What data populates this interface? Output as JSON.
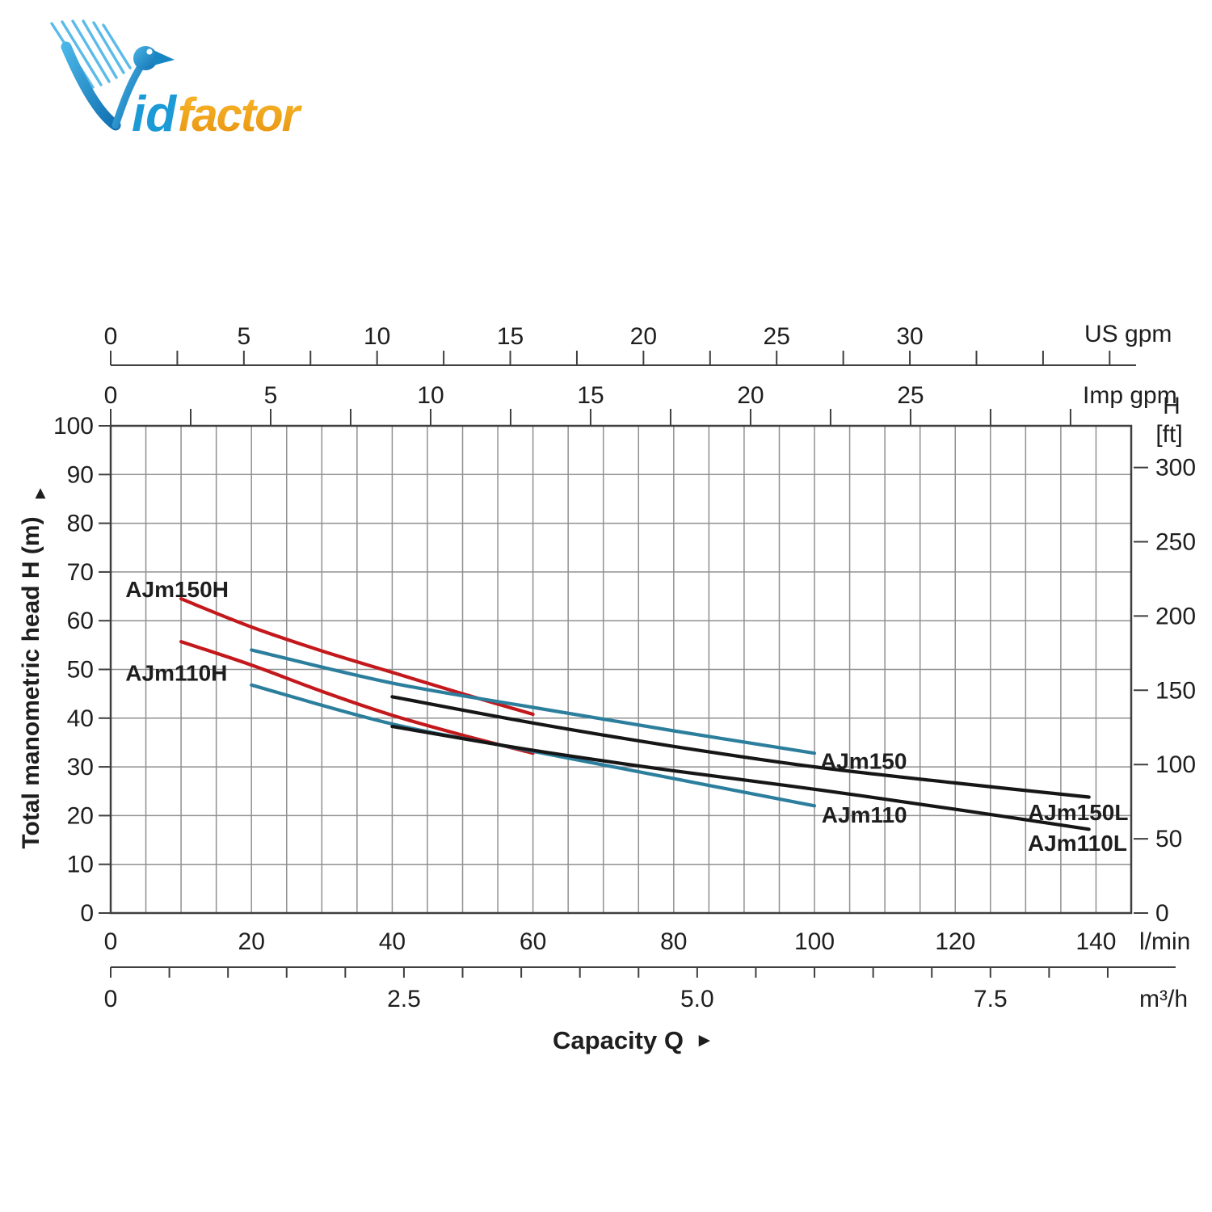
{
  "page": {
    "background": "#ffffff"
  },
  "logo": {
    "name": "VidFactor",
    "text_id": "id",
    "text_factor": "factor",
    "colors": {
      "blue": "#1b9ad6",
      "blue_dark": "#0f6fb0",
      "blue_light": "#49b4e6",
      "orange": "#f6a81c",
      "orange_dark": "#e8920e"
    }
  },
  "chart_data": {
    "type": "line",
    "title": "",
    "xlabel": "Capacity Q",
    "xlabel_arrow": "►",
    "ylabel": "Total manometric head H (m)",
    "ylabel_arrow": "▲",
    "x_range_lmin": [
      0,
      145
    ],
    "x_grid_step_lmin": 5,
    "y_range_m": [
      0,
      100
    ],
    "y_grid_step_m": 10,
    "grid": true,
    "legend_position": "inline-labels",
    "axes": {
      "us_gpm": {
        "unit": "US gpm",
        "lmin_per_unit": 3.785,
        "tick_step": 2.5,
        "tick_max": 37.5,
        "tick_labels": [
          0,
          5,
          10,
          15,
          20,
          25,
          30
        ]
      },
      "imp_gpm": {
        "unit": "Imp gpm",
        "lmin_per_unit": 4.546,
        "tick_step": 2.5,
        "tick_max": 30,
        "tick_labels": [
          0,
          5,
          10,
          15,
          20,
          25
        ]
      },
      "l_min": {
        "unit": "l/min",
        "lmin_per_unit": 1,
        "tick_labels": [
          0,
          20,
          40,
          60,
          80,
          100,
          120,
          140
        ]
      },
      "m3_h": {
        "unit": "m³/h",
        "lmin_per_unit": 16.6667,
        "tick_step": 0.5,
        "tick_max": 8.5,
        "tick_labels": [
          "0",
          "2.5",
          "5.0",
          "7.5"
        ]
      },
      "h_m": {
        "tick_labels": [
          0,
          10,
          20,
          30,
          40,
          50,
          60,
          70,
          80,
          90,
          100
        ]
      },
      "h_ft": {
        "unit_line1": "H",
        "unit_line2": "[ft]",
        "m_per_ft": 0.3048,
        "tick_labels": [
          0,
          50,
          100,
          150,
          200,
          250,
          300
        ]
      }
    },
    "series": [
      {
        "name": "AJm150H",
        "color": "#c3181c",
        "points": [
          [
            10,
            64.5
          ],
          [
            20,
            58.7
          ],
          [
            30,
            53.8
          ],
          [
            40,
            49.4
          ],
          [
            50,
            45.0
          ],
          [
            60,
            40.8
          ]
        ],
        "label_at": [
          2.1,
          66.5
        ]
      },
      {
        "name": "AJm110H",
        "color": "#c3181c",
        "points": [
          [
            10,
            55.7
          ],
          [
            20,
            50.9
          ],
          [
            30,
            45.5
          ],
          [
            40,
            40.6
          ],
          [
            50,
            36.5
          ],
          [
            60,
            32.8
          ]
        ],
        "label_at": [
          2.1,
          49.3
        ]
      },
      {
        "name": "AJm150",
        "color": "#2c7e9d",
        "points": [
          [
            20,
            54.0
          ],
          [
            40,
            47.2
          ],
          [
            60,
            42.2
          ],
          [
            80,
            37.4
          ],
          [
            100,
            32.8
          ]
        ],
        "label_at": [
          100.8,
          31.3
        ]
      },
      {
        "name": "AJm110",
        "color": "#2c7e9d",
        "points": [
          [
            20,
            46.8
          ],
          [
            40,
            38.8
          ],
          [
            60,
            33.2
          ],
          [
            80,
            27.6
          ],
          [
            100,
            22.0
          ]
        ],
        "label_at": [
          101.0,
          20.2
        ]
      },
      {
        "name": "AJm150L",
        "color": "#161616",
        "points": [
          [
            40,
            44.4
          ],
          [
            60,
            39.0
          ],
          [
            80,
            34.2
          ],
          [
            100,
            30.0
          ],
          [
            120,
            26.7
          ],
          [
            139,
            23.8
          ]
        ],
        "label_at": [
          130.3,
          20.7
        ]
      },
      {
        "name": "AJm110L",
        "color": "#161616",
        "points": [
          [
            40,
            38.3
          ],
          [
            60,
            33.4
          ],
          [
            80,
            29.2
          ],
          [
            100,
            25.4
          ],
          [
            120,
            21.3
          ],
          [
            139,
            17.2
          ]
        ],
        "label_at": [
          130.3,
          14.4
        ]
      }
    ],
    "style_colors": {
      "grid": "#909090",
      "frame": "#3f3f3f",
      "text": "#1e1e1e"
    }
  }
}
